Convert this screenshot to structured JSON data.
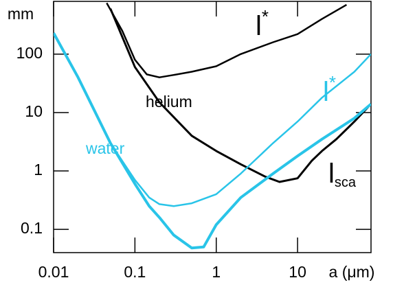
{
  "chart_data": {
    "type": "line",
    "xscale": "log",
    "yscale": "log",
    "xlabel": "a (μm)",
    "ylabel": "mm",
    "xlim": [
      0.01,
      80
    ],
    "ylim": [
      0.04,
      800
    ],
    "xticks": [
      0.01,
      0.1,
      1,
      10
    ],
    "yticks": [
      0.1,
      1,
      10,
      100
    ],
    "series": [
      {
        "color": "#000000",
        "linewidth": 2.5,
        "x": [
          0.045,
          0.07,
          0.1,
          0.14,
          0.2,
          0.3,
          0.5,
          1,
          2,
          5,
          10,
          20,
          40
        ],
        "values": [
          750,
          250,
          80,
          45,
          40,
          44,
          50,
          62,
          100,
          160,
          220,
          400,
          700
        ]
      },
      {
        "color": "#000000",
        "linewidth": 3,
        "x": [
          0.05,
          0.1,
          0.2,
          0.5,
          1,
          2,
          4,
          6,
          10,
          15,
          20,
          30,
          50,
          80
        ],
        "values": [
          600,
          60,
          15,
          4,
          2.2,
          1.3,
          0.8,
          0.65,
          0.75,
          1.5,
          2.2,
          3.5,
          7,
          14
        ]
      },
      {
        "color": "#29c4e8",
        "linewidth": 2.5,
        "x": [
          0.01,
          0.02,
          0.05,
          0.1,
          0.15,
          0.2,
          0.3,
          0.5,
          1,
          2,
          5,
          10,
          20,
          50,
          80
        ],
        "values": [
          230,
          40,
          3,
          0.7,
          0.35,
          0.27,
          0.25,
          0.28,
          0.4,
          0.9,
          3,
          7,
          18,
          50,
          100
        ]
      },
      {
        "color": "#29c4e8",
        "linewidth": 4,
        "x": [
          0.01,
          0.02,
          0.05,
          0.1,
          0.15,
          0.2,
          0.3,
          0.5,
          0.7,
          1,
          2,
          5,
          10,
          20,
          50,
          80
        ],
        "values": [
          230,
          40,
          3,
          0.6,
          0.25,
          0.16,
          0.08,
          0.048,
          0.05,
          0.12,
          0.35,
          0.9,
          1.8,
          3.5,
          8,
          14
        ]
      }
    ],
    "annotations": [
      {
        "text": "helium",
        "color": "#000000"
      },
      {
        "text": "water",
        "color": "#29c4e8"
      },
      {
        "text": "l",
        "superscript": "*",
        "color": "#000000"
      },
      {
        "text": "l",
        "superscript": "*",
        "color": "#29c4e8"
      },
      {
        "text": "l",
        "subscript": "sca",
        "color": "#000000"
      }
    ]
  }
}
